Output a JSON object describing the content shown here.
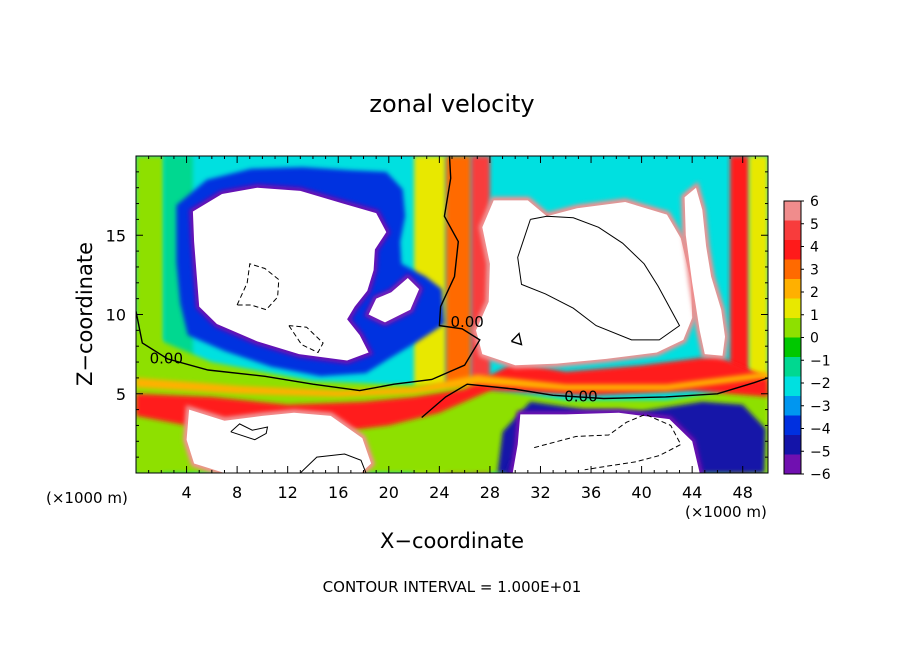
{
  "chart_data": {
    "type": "heatmap",
    "title": "zonal velocity",
    "xlabel": "X−coordinate",
    "ylabel": "Z−coordinate",
    "x_unit_left": "(×1000 m)",
    "x_unit_right": "(×1000 m)",
    "xlim": [
      0,
      50
    ],
    "ylim": [
      0,
      20
    ],
    "x_ticks": [
      4,
      8,
      12,
      16,
      20,
      24,
      28,
      32,
      36,
      40,
      44,
      48
    ],
    "x_tick_labels": [
      "4",
      "8",
      "12",
      "16",
      "20",
      "24",
      "28",
      "32",
      "36",
      "40",
      "44",
      "48"
    ],
    "y_ticks": [
      5,
      10,
      15
    ],
    "y_tick_labels": [
      "5",
      "10",
      "15"
    ],
    "colorbar": {
      "range": [
        -6,
        6
      ],
      "tick_labels": [
        "6",
        "5",
        "4",
        "3",
        "2",
        "1",
        "0",
        "−1",
        "−2",
        "−3",
        "−4",
        "−5",
        "−6"
      ],
      "colors": [
        "#F08C8C",
        "#F83C3C",
        "#FF1A1A",
        "#FF6A00",
        "#FFB000",
        "#E8E800",
        "#8EE000",
        "#00C800",
        "#00D890",
        "#00E0E0",
        "#0096F0",
        "#0030E0",
        "#1414A8",
        "#7010B0"
      ]
    },
    "contour_labels": [
      {
        "text": "0.00",
        "x": 2.4,
        "y": 6.9
      },
      {
        "text": "0.00",
        "x": 26.2,
        "y": 9.2
      },
      {
        "text": "0.00",
        "x": 35.2,
        "y": 4.5
      }
    ],
    "footer": "CONTOUR INTERVAL = 1.000E+01",
    "regions": [
      {
        "kind": "white_saturated",
        "value": -7,
        "poly": [
          [
            4.5,
            16.5
          ],
          [
            6.8,
            17.6
          ],
          [
            9.6,
            18
          ],
          [
            13,
            17.8
          ],
          [
            16.4,
            17
          ],
          [
            19,
            16.4
          ],
          [
            19.8,
            15.2
          ],
          [
            18.9,
            14.1
          ],
          [
            18.8,
            12.8
          ],
          [
            18.3,
            11.5
          ],
          [
            17.3,
            10.5
          ],
          [
            16.7,
            9.7
          ],
          [
            17.7,
            8.7
          ],
          [
            18.4,
            7.6
          ],
          [
            16.7,
            7.1
          ],
          [
            12.9,
            7.5
          ],
          [
            9.6,
            8.3
          ],
          [
            6.4,
            9.4
          ],
          [
            5,
            10.5
          ],
          [
            4.8,
            12.5
          ],
          [
            4.6,
            14.6
          ]
        ]
      },
      {
        "kind": "blue_band",
        "value": -4.5,
        "poly": [
          [
            3.2,
            16.9
          ],
          [
            5.6,
            18.5
          ],
          [
            9.1,
            19.2
          ],
          [
            13.2,
            19.3
          ],
          [
            17,
            19.1
          ],
          [
            19.8,
            19
          ],
          [
            21.1,
            17.9
          ],
          [
            21.3,
            16.2
          ],
          [
            20.9,
            14.6
          ],
          [
            21,
            13.2
          ],
          [
            22.9,
            12.4
          ],
          [
            24.2,
            11.6
          ],
          [
            24.4,
            9.4
          ],
          [
            22.3,
            8.3
          ],
          [
            20,
            7.2
          ],
          [
            18.2,
            6.3
          ],
          [
            14.6,
            6.1
          ],
          [
            10.7,
            6.7
          ],
          [
            7,
            7.7
          ],
          [
            4.1,
            8.7
          ],
          [
            3.5,
            10.7
          ],
          [
            3.2,
            13.3
          ]
        ]
      },
      {
        "kind": "white_saturated",
        "value": -7,
        "poly": [
          [
            18.4,
            10
          ],
          [
            19.7,
            9.5
          ],
          [
            21.7,
            10.3
          ],
          [
            22.4,
            11.6
          ],
          [
            21.5,
            12.3
          ],
          [
            20.2,
            11.4
          ],
          [
            19,
            11
          ]
        ]
      },
      {
        "kind": "white_saturated",
        "value": 7,
        "poly": [
          [
            28.3,
            17.2
          ],
          [
            31,
            17.2
          ],
          [
            32.5,
            16.2
          ],
          [
            34.9,
            16.7
          ],
          [
            38.7,
            17.1
          ],
          [
            42,
            16.3
          ],
          [
            43.1,
            14.8
          ],
          [
            43.9,
            12.1
          ],
          [
            44,
            9.8
          ],
          [
            43.3,
            8.4
          ],
          [
            41.2,
            7.6
          ],
          [
            37.2,
            7.2
          ],
          [
            33.3,
            6.9
          ],
          [
            30,
            6.8
          ],
          [
            27.4,
            7.5
          ],
          [
            26.9,
            9
          ],
          [
            27.9,
            10.8
          ],
          [
            28,
            13.2
          ],
          [
            27.4,
            15.5
          ]
        ]
      },
      {
        "kind": "white_saturated",
        "value": 7,
        "poly": [
          [
            44.3,
            18
          ],
          [
            44.8,
            16.6
          ],
          [
            45.1,
            14.3
          ],
          [
            45.5,
            12.4
          ],
          [
            46.3,
            10.3
          ],
          [
            46.6,
            8.6
          ],
          [
            46.4,
            7.4
          ],
          [
            45,
            7.5
          ],
          [
            44.6,
            9
          ],
          [
            44,
            12
          ],
          [
            43.5,
            15
          ],
          [
            43.4,
            17.4
          ]
        ]
      },
      {
        "kind": "white_saturated",
        "value": 7,
        "poly": [
          [
            4.2,
            4
          ],
          [
            7,
            3.3
          ],
          [
            10,
            3.6
          ],
          [
            12.5,
            3.8
          ],
          [
            15.4,
            3.6
          ],
          [
            17.9,
            2.2
          ],
          [
            18.6,
            0.6
          ],
          [
            17.8,
            0
          ],
          [
            7,
            0
          ],
          [
            4.6,
            0.6
          ],
          [
            4,
            2.1
          ]
        ]
      },
      {
        "kind": "white_saturated",
        "value": -7,
        "poly": [
          [
            30.4,
            3.7
          ],
          [
            34,
            3.7
          ],
          [
            38.2,
            3.8
          ],
          [
            42.2,
            3.4
          ],
          [
            44,
            2
          ],
          [
            44.6,
            0
          ],
          [
            29.8,
            0
          ],
          [
            30.2,
            1.8
          ]
        ]
      },
      {
        "kind": "blue_band",
        "value": -5,
        "poly": [
          [
            28.6,
            0
          ],
          [
            29,
            2.6
          ],
          [
            31.2,
            4.5
          ],
          [
            35.5,
            4
          ],
          [
            40,
            3.9
          ],
          [
            44.8,
            4.5
          ],
          [
            48,
            4.3
          ],
          [
            49.8,
            2.8
          ],
          [
            49.7,
            0
          ]
        ]
      },
      {
        "kind": "blue_band",
        "value": -5,
        "poly": [
          [
            29.2,
            0
          ],
          [
            29.6,
            0.8
          ],
          [
            30.6,
            0.9
          ],
          [
            31,
            0
          ]
        ]
      }
    ],
    "contour_lines": [
      {
        "style": "solid",
        "value": 0,
        "points": [
          [
            0,
            10.2
          ],
          [
            0.5,
            8.2
          ],
          [
            2.5,
            7.2
          ],
          [
            5.7,
            6.5
          ],
          [
            10.2,
            6.1
          ],
          [
            14,
            5.6
          ],
          [
            17.7,
            5.2
          ],
          [
            20.4,
            5.6
          ],
          [
            23.4,
            5.9
          ],
          [
            26,
            6.8
          ],
          [
            27.2,
            8.4
          ],
          [
            25.8,
            9.1
          ],
          [
            24,
            9.3
          ],
          [
            24.1,
            10.5
          ],
          [
            25.2,
            12.4
          ],
          [
            25.5,
            14.6
          ],
          [
            24.4,
            16.2
          ],
          [
            24.9,
            18.6
          ],
          [
            24.8,
            20
          ]
        ]
      },
      {
        "style": "solid",
        "value": 0,
        "points": [
          [
            22.6,
            3.5
          ],
          [
            24.5,
            4.8
          ],
          [
            26.2,
            5.6
          ],
          [
            29.9,
            5.3
          ],
          [
            33,
            4.9
          ],
          [
            37,
            4.7
          ],
          [
            41.9,
            4.8
          ],
          [
            46,
            5
          ],
          [
            48.9,
            5.7
          ],
          [
            50,
            6
          ]
        ]
      },
      {
        "style": "solid",
        "value": 10,
        "points": [
          [
            31.2,
            16
          ],
          [
            32.5,
            16.2
          ],
          [
            34.6,
            16.1
          ],
          [
            36.6,
            15.5
          ],
          [
            38.5,
            14.5
          ],
          [
            40.2,
            13.2
          ],
          [
            41.3,
            11.8
          ],
          [
            43,
            9.3
          ],
          [
            41.4,
            8.4
          ],
          [
            39.2,
            8.4
          ],
          [
            36.4,
            9.3
          ],
          [
            34.6,
            10.4
          ],
          [
            32.4,
            11.3
          ],
          [
            30.5,
            11.9
          ],
          [
            30.2,
            13.6
          ],
          [
            31.2,
            16
          ]
        ]
      },
      {
        "style": "solid",
        "value": 10,
        "points": [
          [
            13,
            0
          ],
          [
            14.3,
            1
          ],
          [
            16.5,
            1.2
          ],
          [
            17.8,
            0.8
          ],
          [
            18.2,
            0
          ]
        ]
      },
      {
        "style": "solid",
        "value": 10,
        "points": [
          [
            7.5,
            2.6
          ],
          [
            9.4,
            2.1
          ],
          [
            10.3,
            2.5
          ],
          [
            10.4,
            2.9
          ],
          [
            9.2,
            2.7
          ],
          [
            8.2,
            3.1
          ],
          [
            7.5,
            2.6
          ]
        ]
      },
      {
        "style": "dashed",
        "value": -10,
        "points": [
          [
            8,
            10.6
          ],
          [
            8.8,
            12
          ],
          [
            9,
            13.2
          ],
          [
            10.2,
            12.9
          ],
          [
            11.3,
            12.2
          ],
          [
            11.2,
            11.1
          ],
          [
            10.3,
            10.3
          ],
          [
            9.1,
            10.6
          ],
          [
            8,
            10.6
          ]
        ]
      },
      {
        "style": "dashed",
        "value": -10,
        "points": [
          [
            12.1,
            9.3
          ],
          [
            13.1,
            8.1
          ],
          [
            14.4,
            7.6
          ],
          [
            14.8,
            8.2
          ],
          [
            13.5,
            9.2
          ],
          [
            12.1,
            9.3
          ]
        ]
      },
      {
        "style": "dashed",
        "value": -10,
        "points": [
          [
            31.5,
            1.6
          ],
          [
            34.8,
            2.3
          ],
          [
            37.4,
            2.4
          ],
          [
            38.8,
            3.2
          ],
          [
            40.3,
            3.7
          ],
          [
            42.3,
            3
          ],
          [
            43.1,
            1.8
          ],
          [
            41.4,
            1.1
          ],
          [
            39.5,
            0.7
          ],
          [
            37,
            0.4
          ],
          [
            35.5,
            0.2
          ]
        ]
      },
      {
        "style": "solid",
        "value": 0,
        "points": [
          [
            29.7,
            8.3
          ],
          [
            30.5,
            8.1
          ],
          [
            30.3,
            8.8
          ],
          [
            29.7,
            8.3
          ]
        ]
      }
    ]
  }
}
